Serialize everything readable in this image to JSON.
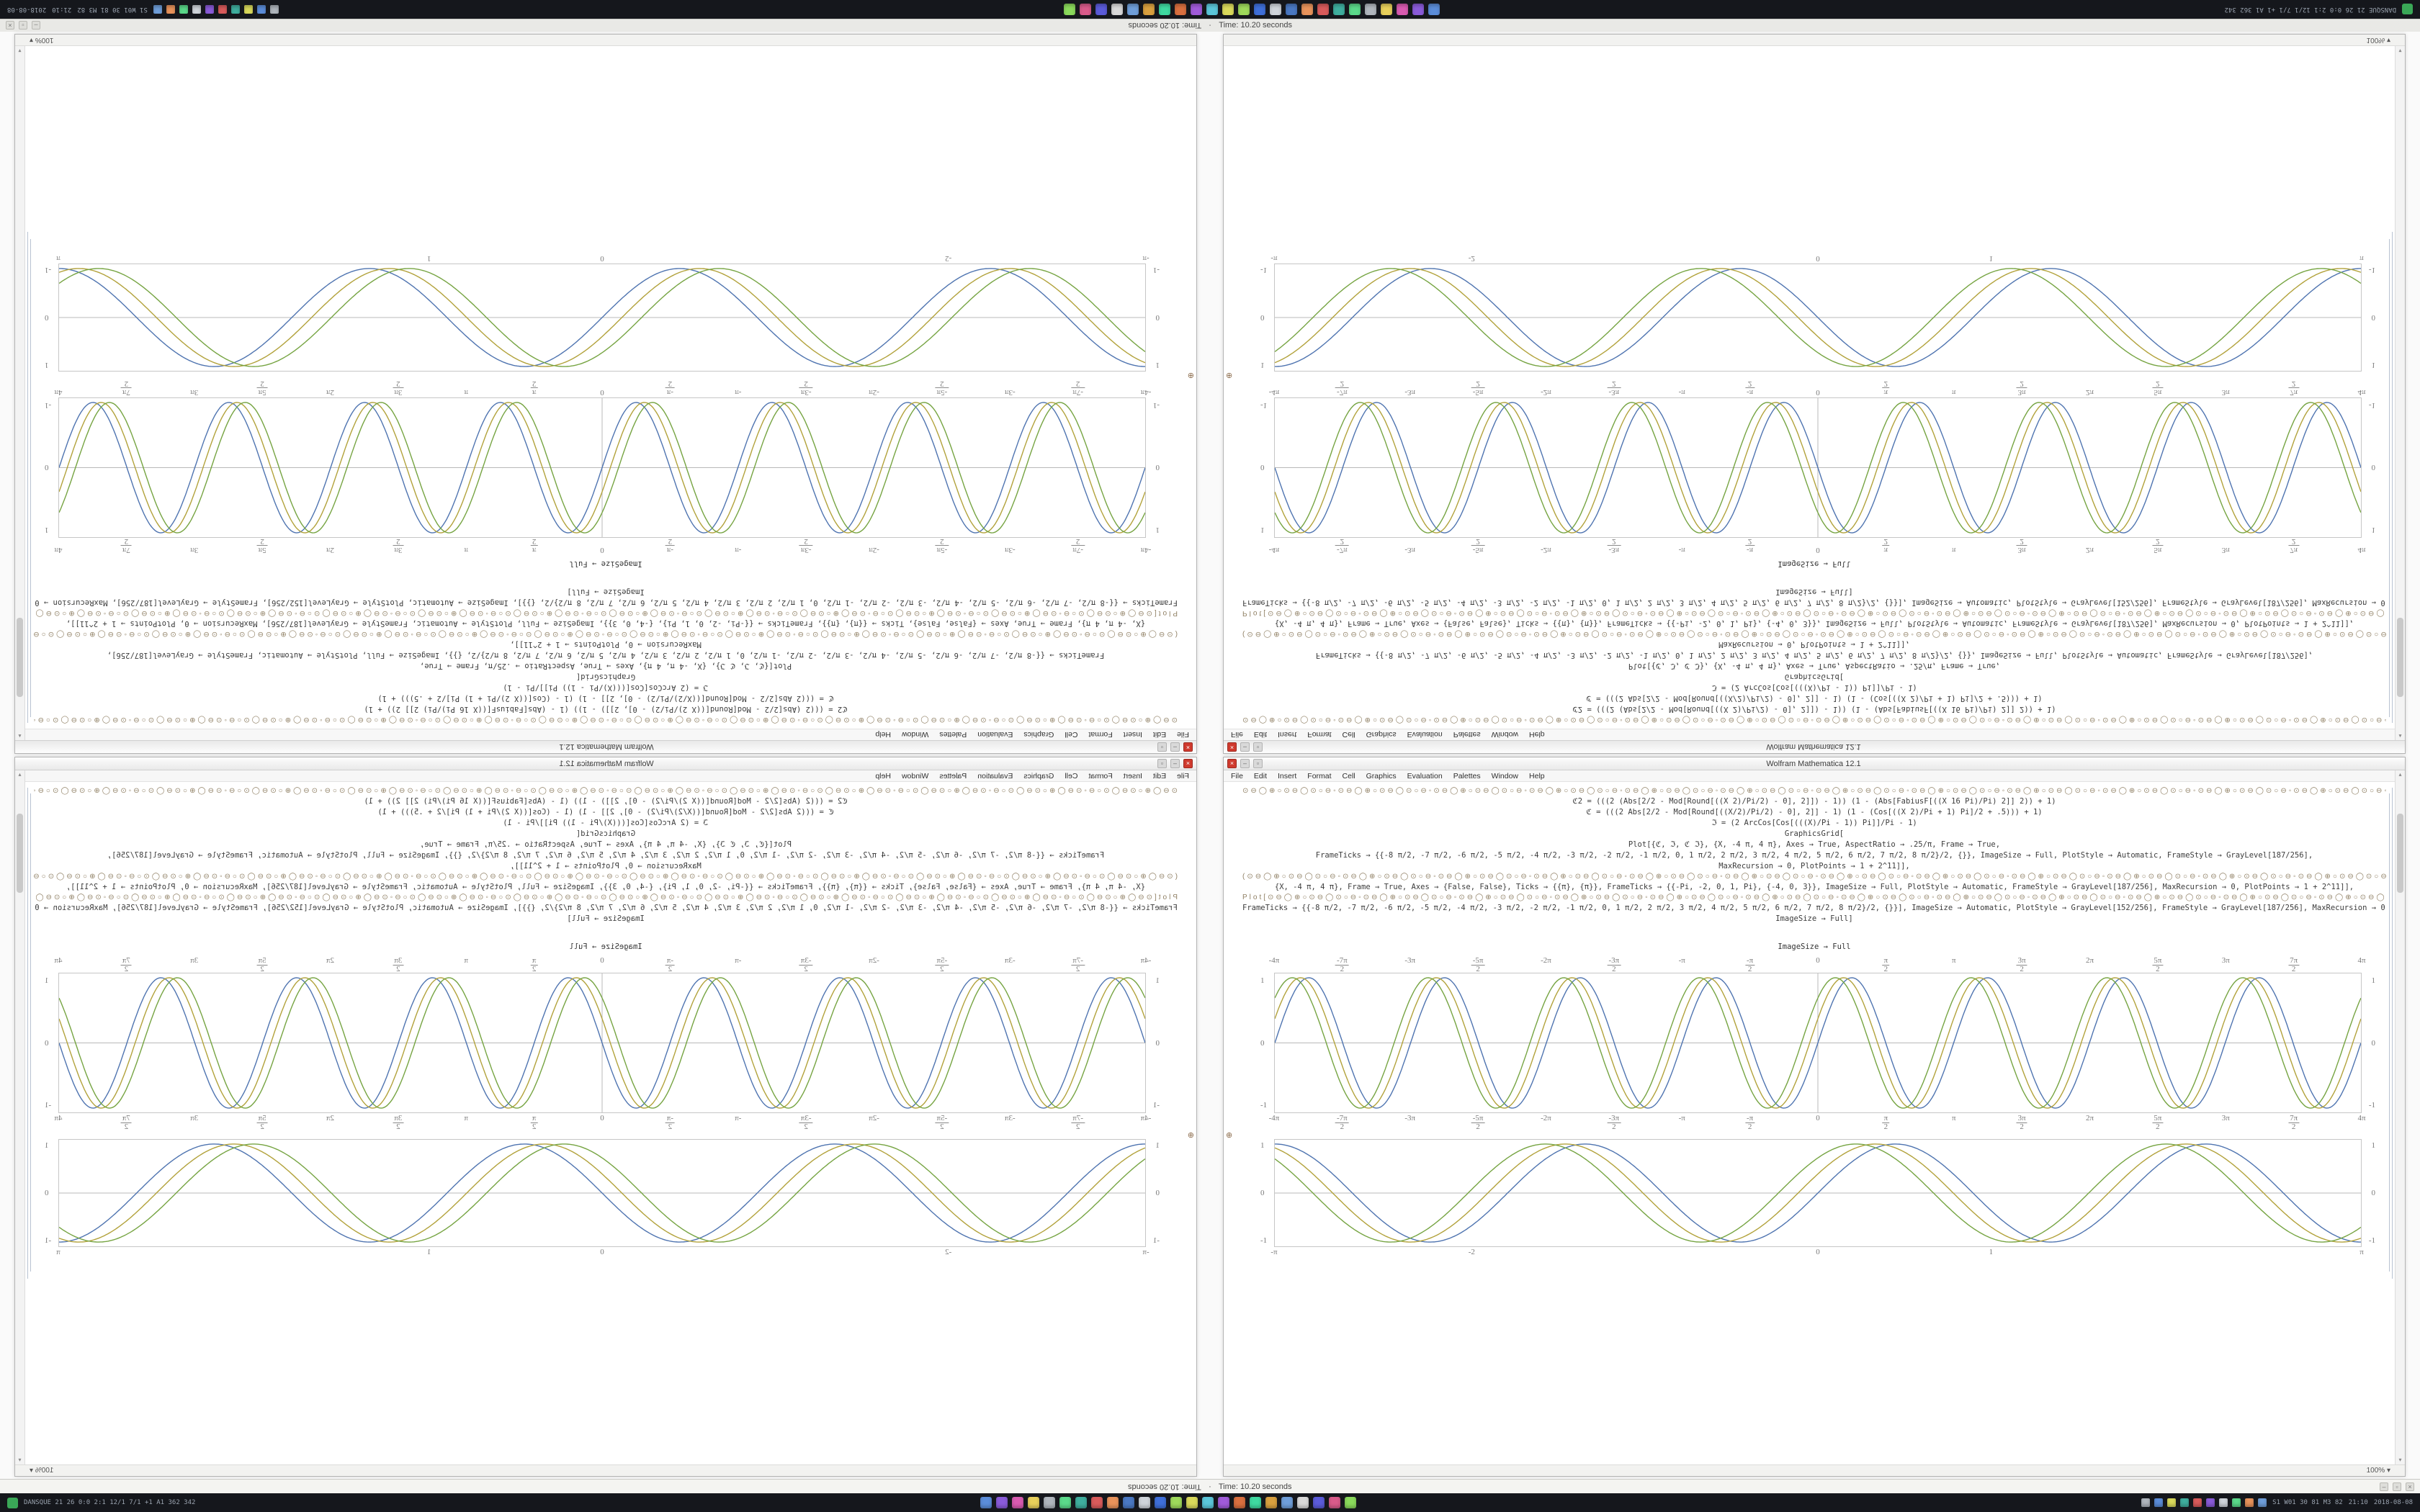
{
  "title_strip": {
    "text": "Time: 10.20 seconds"
  },
  "status_strip": {
    "text": "Time: 10.20 seconds",
    "separator": "·"
  },
  "taskbar": {
    "left_text": "DANSQUE 21 26 0:0 2:1 12/1 7/1 +1 A1 362 342",
    "right_text": "S1 W01 30 81 M3 82",
    "clock": "21:10",
    "date": "2018-08-08",
    "app_icons": [
      {
        "name": "app-icon",
        "color": "#5b8dd9"
      },
      {
        "name": "app-icon",
        "color": "#8a5bd9"
      },
      {
        "name": "app-icon",
        "color": "#d95bb0"
      },
      {
        "name": "app-icon",
        "color": "#e8d05b"
      },
      {
        "name": "app-icon",
        "color": "#b0b6bd"
      },
      {
        "name": "app-icon",
        "color": "#5bd98a"
      },
      {
        "name": "app-icon",
        "color": "#3fae9e"
      },
      {
        "name": "app-icon",
        "color": "#d95b5b"
      },
      {
        "name": "app-icon",
        "color": "#e8935b"
      },
      {
        "name": "app-icon",
        "color": "#4a78c2"
      },
      {
        "name": "app-icon",
        "color": "#cfd4da"
      },
      {
        "name": "app-icon",
        "color": "#3f6fd9"
      },
      {
        "name": "app-icon",
        "color": "#9ed95b"
      },
      {
        "name": "app-icon",
        "color": "#d9d95b"
      },
      {
        "name": "app-icon",
        "color": "#5bc6d9"
      },
      {
        "name": "app-icon",
        "color": "#a05bd9"
      },
      {
        "name": "app-icon",
        "color": "#d96f3f"
      },
      {
        "name": "app-icon",
        "color": "#3fd9a0"
      },
      {
        "name": "app-icon",
        "color": "#d9a03f"
      },
      {
        "name": "app-icon",
        "color": "#6f9ed9"
      },
      {
        "name": "app-icon",
        "color": "#d9d9d9"
      },
      {
        "name": "app-icon",
        "color": "#5b5bd9"
      },
      {
        "name": "app-icon",
        "color": "#d95b8a"
      },
      {
        "name": "app-icon",
        "color": "#8ad95b"
      }
    ],
    "tray_icons": [
      {
        "name": "tray-icon",
        "color": "#b0b6bd"
      },
      {
        "name": "tray-icon",
        "color": "#5b8dd9"
      },
      {
        "name": "tray-icon",
        "color": "#d9d95b"
      },
      {
        "name": "tray-icon",
        "color": "#3fae9e"
      },
      {
        "name": "tray-icon",
        "color": "#d95b5b"
      },
      {
        "name": "tray-icon",
        "color": "#8a5bd9"
      },
      {
        "name": "tray-icon",
        "color": "#cfd4da"
      },
      {
        "name": "tray-icon",
        "color": "#5bd98a"
      },
      {
        "name": "tray-icon",
        "color": "#e8935b"
      },
      {
        "name": "tray-icon",
        "color": "#6f9ed9"
      }
    ]
  },
  "window": {
    "title": "Wolfram Mathematica 12.1",
    "menus": [
      "File",
      "Edit",
      "Insert",
      "Format",
      "Cell",
      "Graphics",
      "Evaluation",
      "Palettes",
      "Window",
      "Help"
    ],
    "zoom": "100%",
    "buttons": {
      "close": "×",
      "min": "–",
      "max": "▫"
    },
    "icons": {
      "up": "▴",
      "down": "▾",
      "caret": "▾",
      "group_open": "⊕"
    }
  },
  "notebook": {
    "glyph_pattern": "⊙⊖◯⊕○⊙⊖◯⊙○⊖◦",
    "cells": [
      {
        "t": "g",
        "rep": 14
      },
      {
        "t": "c",
        "text": "ℭ2 = (((2 (Abs[2/2 - Mod[Round[((X 2)/Pi/2) - 0], 2]]) - 1)) (1 - (Abs[FabiusF[((X 16 Pi)/Pi) 2]] 2)) + 1)"
      },
      {
        "t": "c",
        "text": "ℭ = (((2 Abs[2/2 - Mod[Round[((X/2)/Pi/2) - 0], 2]] - 1) (1 - (Cos[((X 2)/Pi + 1) Pi]/2 + .5))) + 1)"
      },
      {
        "t": "c",
        "text": "ℑ = (2 ArcCos[Cos[(((X)/Pi - 1)) Pi]]/Pi - 1)"
      },
      {
        "t": "c",
        "text": "GraphicsGrid["
      },
      {
        "t": "c",
        "text": "Plot[{ℭ, ℑ, ℭ ℑ}, {X, -4 π, 4 π}, Axes → True, AspectRatio → .25/π, Frame → True,"
      },
      {
        "t": "c",
        "text": "FrameTicks → {{-8 π/2, -7 π/2, -6 π/2, -5 π/2, -4 π/2, -3 π/2, -2 π/2, -1 π/2, 0, 1 π/2, 2 π/2, 3 π/2, 4 π/2, 5 π/2, 6 π/2, 7 π/2, 8 π/2}/2, {}}, ImageSize → Full, PlotStyle → Automatic, FrameStyle → GrayLevel[187/256],"
      },
      {
        "t": "c",
        "text": "MaxRecursion → 0, PlotPoints → 1 + 2^11]],"
      },
      {
        "t": "g",
        "rep": 14,
        "pre": "(",
        "suf": "), ℑC, {"
      },
      {
        "t": "c",
        "text": "{X, -4 π, 4 π}, Frame → True, Axes → {False, False}, Ticks → {{π}, {π}}, FrameTicks → {{-Pi, -2, 0, 1, Pi}, {-4, 0, 3}}, ImageSize → Full, PlotStyle → Automatic, FrameStyle → GrayLevel[187/256], MaxRecursion → 0, PlotPoints → 1 + 2^11]],"
      },
      {
        "t": "g",
        "rep": 14,
        "pre": "Plot[",
        "suf": ", ℑC, {"
      },
      {
        "t": "c",
        "text": "FrameTicks → {{-8 π/2, -7 π/2, -6 π/2, -5 π/2, -4 π/2, -3 π/2, -2 π/2, -1 π/2, 0, 1 π/2, 2 π/2, 3 π/2, 4 π/2, 5 π/2, 6 π/2, 7 π/2, 8 π/2}/2, {}}], ImageSize → Automatic, PlotStyle → GrayLevel[152/256], FrameStyle → GrayLevel[187/256], MaxRecursion → 0, PlotPoints → 1 + 2^11]]}]"
      },
      {
        "t": "c",
        "text": "ImageSize → Full]"
      },
      {
        "t": "sp",
        "h": 14
      },
      {
        "t": "l",
        "text": "ImageSize → Full"
      },
      {
        "t": "p",
        "plot": 1
      },
      {
        "t": "sp",
        "h": 10
      },
      {
        "t": "p",
        "plot": 0
      }
    ]
  },
  "chart_data": [
    {
      "type": "line",
      "name": "triple-sine-braid",
      "x_range": [
        -3.1416,
        3.1416
      ],
      "series": [
        {
          "name": "ℭ",
          "color": "#4f74b0",
          "fn": "sin",
          "freq": 3.5,
          "phase": 0.0,
          "amp": 1
        },
        {
          "name": "ℑ",
          "color": "#b2a23b",
          "fn": "sin",
          "freq": 3.5,
          "phase": 0.4,
          "amp": 1
        },
        {
          "name": "ℭℑ",
          "color": "#76a442",
          "fn": "sin",
          "freq": 3.5,
          "phase": 0.8,
          "amp": 1
        }
      ],
      "x_ticks": [
        {
          "label": "-π",
          "v": -3.1416
        },
        {
          "label": "-2",
          "v": -2
        },
        {
          "label": "0",
          "v": 0
        },
        {
          "label": "1",
          "v": 1
        },
        {
          "label": "π",
          "v": 3.1416
        }
      ],
      "y_ticks": [
        {
          "label": "1",
          "v": 1
        },
        {
          "label": "0",
          "v": 0
        },
        {
          "label": "-1",
          "v": -1
        }
      ],
      "ylim": [
        -1.12,
        1.12
      ],
      "frame": true,
      "axis_h": true,
      "axis_v": false,
      "ticks_top": false,
      "height": 150
    },
    {
      "type": "line",
      "name": "dense-sine-weave",
      "x_range": [
        -12.566,
        12.566
      ],
      "series": [
        {
          "name": "ℭ",
          "color": "#4f74b0",
          "fn": "sin",
          "freq": 2,
          "phase": 0.0,
          "amp": 1
        },
        {
          "name": "ℑ",
          "color": "#b2a23b",
          "fn": "sin",
          "freq": 2,
          "phase": 0.38,
          "amp": 1
        },
        {
          "name": "ℭℑ",
          "color": "#76a442",
          "fn": "sin",
          "freq": 2,
          "phase": 0.76,
          "amp": 1
        }
      ],
      "x_ticks": [
        {
          "label": "-4π",
          "v": -12.566
        },
        {
          "label": "-7π/2",
          "v": -10.996
        },
        {
          "label": "-3π",
          "v": -9.425
        },
        {
          "label": "-5π/2",
          "v": -7.854
        },
        {
          "label": "-2π",
          "v": -6.283
        },
        {
          "label": "-3π/2",
          "v": -4.712
        },
        {
          "label": "-π",
          "v": -3.142
        },
        {
          "label": "-π/2",
          "v": -1.571
        },
        {
          "label": "0",
          "v": 0
        },
        {
          "label": "π/2",
          "v": 1.571
        },
        {
          "label": "π",
          "v": 3.142
        },
        {
          "label": "3π/2",
          "v": 4.712
        },
        {
          "label": "2π",
          "v": 6.283
        },
        {
          "label": "5π/2",
          "v": 7.854
        },
        {
          "label": "3π",
          "v": 9.425
        },
        {
          "label": "7π/2",
          "v": 10.996
        },
        {
          "label": "4π",
          "v": 12.566
        }
      ],
      "y_ticks": [
        {
          "label": "1",
          "v": 1
        },
        {
          "label": "0",
          "v": 0
        },
        {
          "label": "-1",
          "v": -1
        }
      ],
      "ylim": [
        -1.12,
        1.12
      ],
      "frame": true,
      "axis_h": true,
      "axis_v": true,
      "ticks_top": true,
      "height": 195
    }
  ]
}
